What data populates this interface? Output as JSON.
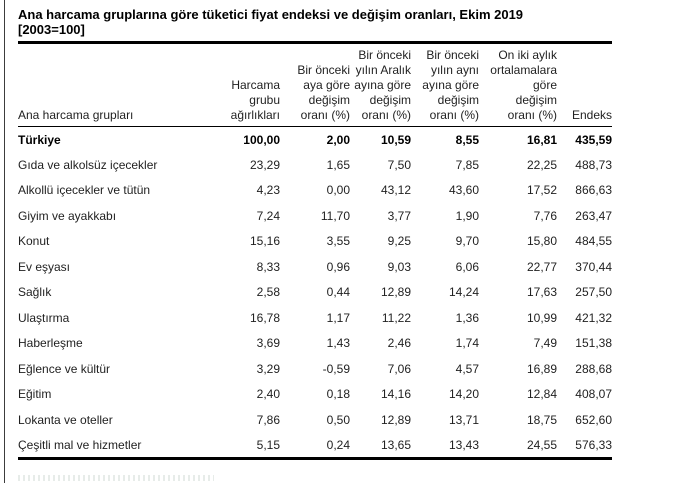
{
  "title": {
    "line1": "Ana harcama gruplarına göre tüketici fiyat endeksi ve değişim oranları, Ekim 2019",
    "line2": "[2003=100]"
  },
  "table": {
    "row_header_label": "Ana harcama grupları",
    "columns": [
      "Harcama\ngrubu\nağırlıkları",
      "Bir önceki\naya göre\ndeğişim\noranı (%)",
      "Bir önceki\nyılın Aralık\nayına göre\ndeğişim\noranı (%)",
      "Bir önceki\nyılın aynı\nayına göre\ndeğişim\noranı (%)",
      "On iki aylık\nortalamalara\ngöre\ndeğişim\noranı (%)",
      "Endeks"
    ],
    "rows": [
      {
        "label": "Türkiye",
        "values": [
          "100,00",
          "2,00",
          "10,59",
          "8,55",
          "16,81",
          "435,59"
        ]
      },
      {
        "label": "Gıda ve alkolsüz içecekler",
        "values": [
          "23,29",
          "1,65",
          "7,50",
          "7,85",
          "22,25",
          "488,73"
        ]
      },
      {
        "label": "Alkollü içecekler ve tütün",
        "values": [
          "4,23",
          "0,00",
          "43,12",
          "43,60",
          "17,52",
          "866,63"
        ]
      },
      {
        "label": "Giyim ve ayakkabı",
        "values": [
          "7,24",
          "11,70",
          "3,77",
          "1,90",
          "7,76",
          "263,47"
        ]
      },
      {
        "label": "Konut",
        "values": [
          "15,16",
          "3,55",
          "9,25",
          "9,70",
          "15,80",
          "484,55"
        ]
      },
      {
        "label": "Ev eşyası",
        "values": [
          "8,33",
          "0,96",
          "9,03",
          "6,06",
          "22,77",
          "370,44"
        ]
      },
      {
        "label": "Sağlık",
        "values": [
          "2,58",
          "0,44",
          "12,89",
          "14,24",
          "17,63",
          "257,50"
        ]
      },
      {
        "label": "Ulaştırma",
        "values": [
          "16,78",
          "1,17",
          "11,22",
          "1,36",
          "10,99",
          "421,32"
        ]
      },
      {
        "label": "Haberleşme",
        "values": [
          "3,69",
          "1,43",
          "2,46",
          "1,74",
          "7,49",
          "151,38"
        ]
      },
      {
        "label": "Eğlence ve kültür",
        "values": [
          "3,29",
          "-0,59",
          "7,06",
          "4,57",
          "16,89",
          "288,68"
        ]
      },
      {
        "label": "Eğitim",
        "values": [
          "2,40",
          "0,18",
          "14,16",
          "14,20",
          "12,84",
          "408,07"
        ]
      },
      {
        "label": "Lokanta ve oteller",
        "values": [
          "7,86",
          "0,50",
          "12,89",
          "13,71",
          "18,75",
          "652,60"
        ]
      },
      {
        "label": "Çeşitli mal ve hizmetler",
        "values": [
          "5,15",
          "0,24",
          "13,65",
          "13,43",
          "24,55",
          "576,33"
        ]
      }
    ]
  }
}
